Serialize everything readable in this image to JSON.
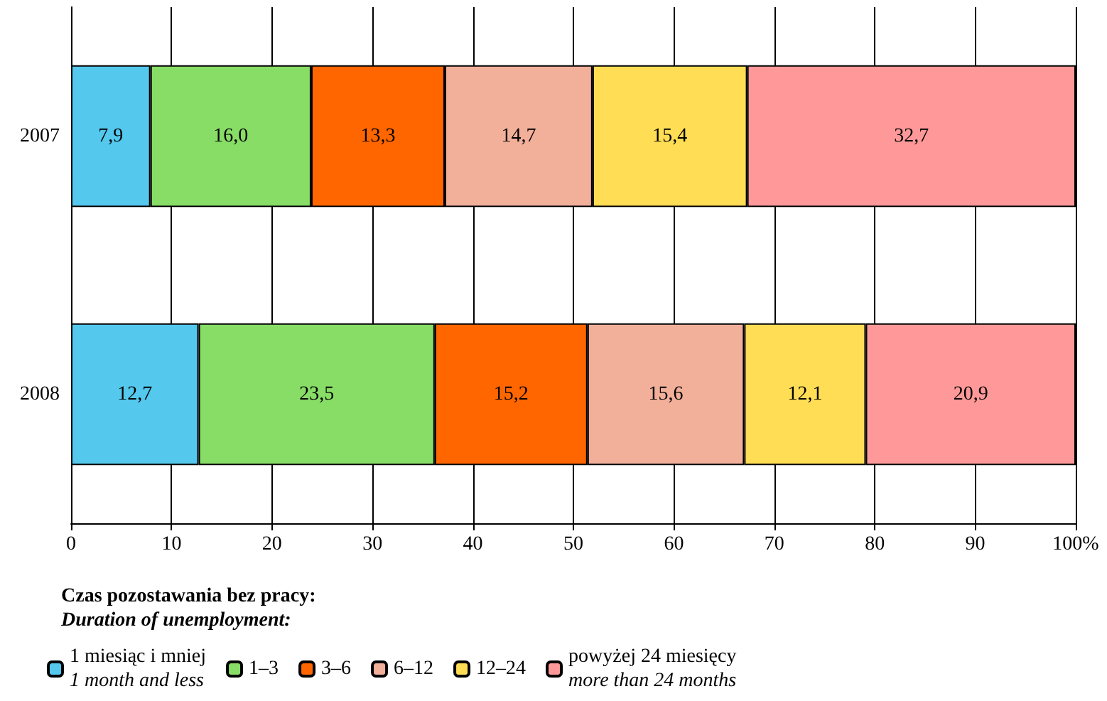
{
  "chart_data": {
    "type": "bar",
    "orientation": "horizontal",
    "stacked": true,
    "categories": [
      "2007",
      "2008"
    ],
    "legend_title": "Czas pozostawania bez pracy:\nDuration of unemployment:",
    "series": [
      {
        "name": "1 miesiąc i mniej\n1 month and less",
        "color": "#55c8ee",
        "values": [
          7.9,
          12.7
        ],
        "value_labels": [
          "7,9",
          "12,7"
        ]
      },
      {
        "name": "1–3",
        "color": "#88dd66",
        "values": [
          16.0,
          23.5
        ],
        "value_labels": [
          "16,0",
          "23,5"
        ]
      },
      {
        "name": "3–6",
        "color": "#ff6600",
        "values": [
          13.3,
          15.2
        ],
        "value_labels": [
          "13,3",
          "15,2"
        ]
      },
      {
        "name": "6–12",
        "color": "#f2b09a",
        "values": [
          14.7,
          15.6
        ],
        "value_labels": [
          "14,7",
          "15,6"
        ]
      },
      {
        "name": "12–24",
        "color": "#ffdd55",
        "values": [
          15.4,
          12.1
        ],
        "value_labels": [
          "15,4",
          "12,1"
        ]
      },
      {
        "name": "powyżej 24 miesięcy\nmore than 24 months",
        "color": "#ff9999",
        "values": [
          32.7,
          20.9
        ],
        "value_labels": [
          "32,7",
          "20,9"
        ]
      }
    ],
    "xlim": [
      0,
      100
    ],
    "xticks": [
      0,
      10,
      20,
      30,
      40,
      50,
      60,
      70,
      80,
      90,
      {
        "value": 100,
        "label": "100%"
      }
    ],
    "grid": "x",
    "legend": "bottom"
  }
}
